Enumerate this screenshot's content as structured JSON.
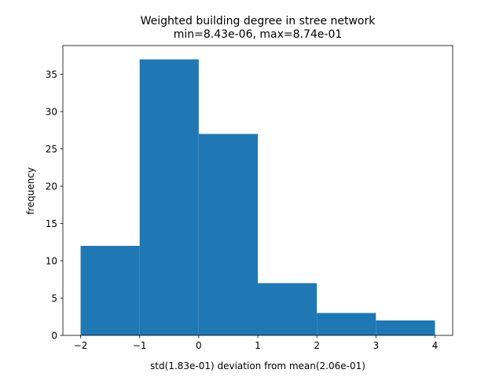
{
  "chart_data": {
    "type": "bar",
    "title_lines": [
      "Weighted building degree in stree network",
      "min=8.43e-06, max=8.74e-01"
    ],
    "xlabel": "std(1.83e-01) deviation from mean(2.06e-01)",
    "ylabel": "frequency",
    "bins": [
      {
        "x0": -2,
        "x1": -1,
        "value": 12
      },
      {
        "x0": -1,
        "x1": 0,
        "value": 37
      },
      {
        "x0": 0,
        "x1": 1,
        "value": 27
      },
      {
        "x0": 1,
        "x1": 2,
        "value": 7
      },
      {
        "x0": 2,
        "x1": 3,
        "value": 3
      },
      {
        "x0": 3,
        "x1": 4,
        "value": 2
      }
    ],
    "xlim": [
      -2.3,
      4.3
    ],
    "ylim": [
      0,
      38.85
    ],
    "xticks": [
      -2,
      -1,
      0,
      1,
      2,
      3,
      4
    ],
    "xtick_labels": [
      "−2",
      "−1",
      "0",
      "1",
      "2",
      "3",
      "4"
    ],
    "yticks": [
      0,
      5,
      10,
      15,
      20,
      25,
      30,
      35
    ],
    "ytick_labels": [
      "0",
      "5",
      "10",
      "15",
      "20",
      "25",
      "30",
      "35"
    ],
    "bar_color": "#1f77b4",
    "grid": false,
    "legend": "none"
  }
}
